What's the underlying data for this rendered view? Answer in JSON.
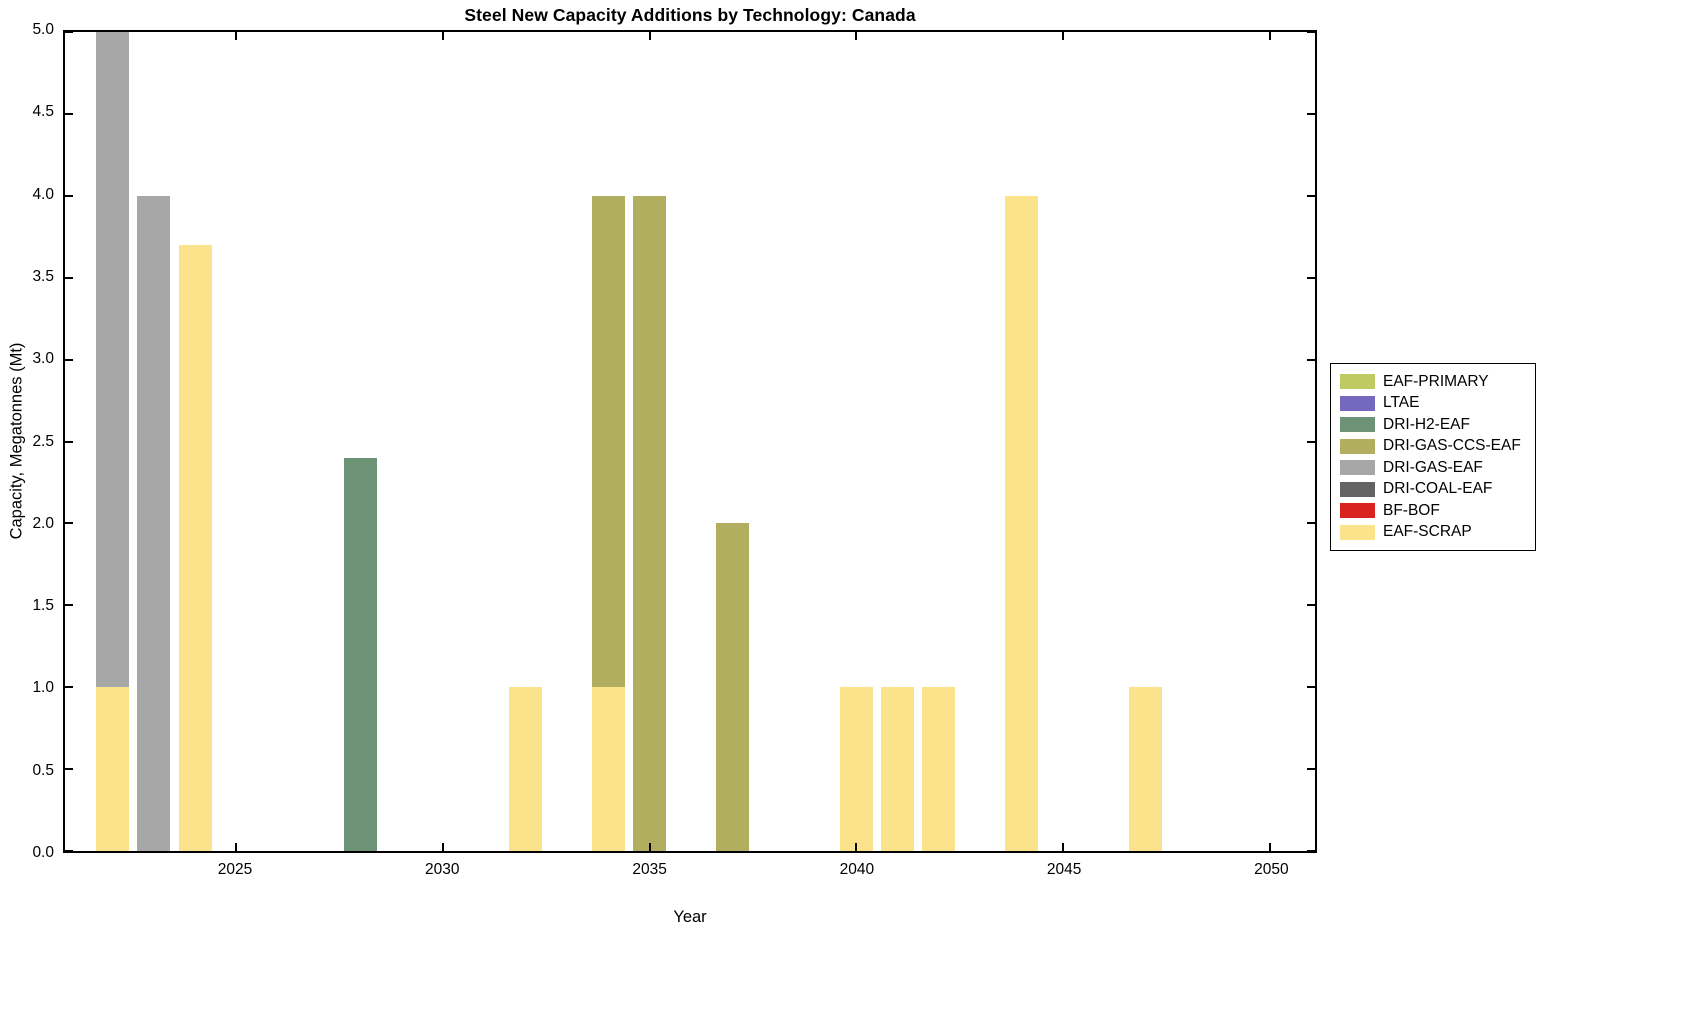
{
  "chart_data": {
    "type": "bar",
    "stacked": true,
    "title": "Steel New Capacity Additions by Technology: Canada",
    "xlabel": "Year",
    "ylabel": "Capacity, Megatonnes (Mt)",
    "xlim": [
      2020.85,
      2051.1
    ],
    "ylim": [
      0,
      5
    ],
    "bar_width_years": 0.8,
    "grid": false,
    "legend_position": "right-outside",
    "xticks": [
      {
        "value": 2025,
        "label": "2025"
      },
      {
        "value": 2030,
        "label": "2030"
      },
      {
        "value": 2035,
        "label": "2035"
      },
      {
        "value": 2040,
        "label": "2040"
      },
      {
        "value": 2045,
        "label": "2045"
      },
      {
        "value": 2050,
        "label": "2050"
      }
    ],
    "yticks": [
      {
        "value": 0.0,
        "label": "0.0"
      },
      {
        "value": 0.5,
        "label": "0.5"
      },
      {
        "value": 1.0,
        "label": "1.0"
      },
      {
        "value": 1.5,
        "label": "1.5"
      },
      {
        "value": 2.0,
        "label": "2.0"
      },
      {
        "value": 2.5,
        "label": "2.5"
      },
      {
        "value": 3.0,
        "label": "3.0"
      },
      {
        "value": 3.5,
        "label": "3.5"
      },
      {
        "value": 4.0,
        "label": "4.0"
      },
      {
        "value": 4.5,
        "label": "4.5"
      },
      {
        "value": 5.0,
        "label": "5.0"
      }
    ],
    "series": [
      {
        "name": "EAF-PRIMARY",
        "color": "#BFCA63"
      },
      {
        "name": "LTAE",
        "color": "#7569BF"
      },
      {
        "name": "DRI-H2-EAF",
        "color": "#6D9377"
      },
      {
        "name": "DRI-GAS-CCS-EAF",
        "color": "#B1AE5F"
      },
      {
        "name": "DRI-GAS-EAF",
        "color": "#A7A7A7"
      },
      {
        "name": "DRI-COAL-EAF",
        "color": "#636363"
      },
      {
        "name": "BF-BOF",
        "color": "#D8231F"
      },
      {
        "name": "EAF-SCRAP",
        "color": "#FBE38B"
      }
    ],
    "bars": [
      {
        "year": 2022,
        "segments": [
          {
            "tech": "EAF-SCRAP",
            "value": 1.0
          },
          {
            "tech": "DRI-GAS-EAF",
            "value": 4.0
          }
        ]
      },
      {
        "year": 2023,
        "segments": [
          {
            "tech": "DRI-GAS-EAF",
            "value": 4.0
          }
        ]
      },
      {
        "year": 2024,
        "segments": [
          {
            "tech": "EAF-SCRAP",
            "value": 3.7
          }
        ]
      },
      {
        "year": 2028,
        "segments": [
          {
            "tech": "DRI-H2-EAF",
            "value": 2.4
          }
        ]
      },
      {
        "year": 2032,
        "segments": [
          {
            "tech": "EAF-SCRAP",
            "value": 1.0
          }
        ]
      },
      {
        "year": 2034,
        "segments": [
          {
            "tech": "EAF-SCRAP",
            "value": 1.0
          },
          {
            "tech": "DRI-GAS-CCS-EAF",
            "value": 3.0
          }
        ]
      },
      {
        "year": 2035,
        "segments": [
          {
            "tech": "DRI-GAS-CCS-EAF",
            "value": 4.0
          }
        ]
      },
      {
        "year": 2037,
        "segments": [
          {
            "tech": "DRI-GAS-CCS-EAF",
            "value": 2.0
          }
        ]
      },
      {
        "year": 2040,
        "segments": [
          {
            "tech": "EAF-SCRAP",
            "value": 1.0
          }
        ]
      },
      {
        "year": 2041,
        "segments": [
          {
            "tech": "EAF-SCRAP",
            "value": 1.0
          }
        ]
      },
      {
        "year": 2042,
        "segments": [
          {
            "tech": "EAF-SCRAP",
            "value": 1.0
          }
        ]
      },
      {
        "year": 2044,
        "segments": [
          {
            "tech": "EAF-SCRAP",
            "value": 4.0
          }
        ]
      },
      {
        "year": 2047,
        "segments": [
          {
            "tech": "EAF-SCRAP",
            "value": 1.0
          }
        ]
      }
    ]
  }
}
